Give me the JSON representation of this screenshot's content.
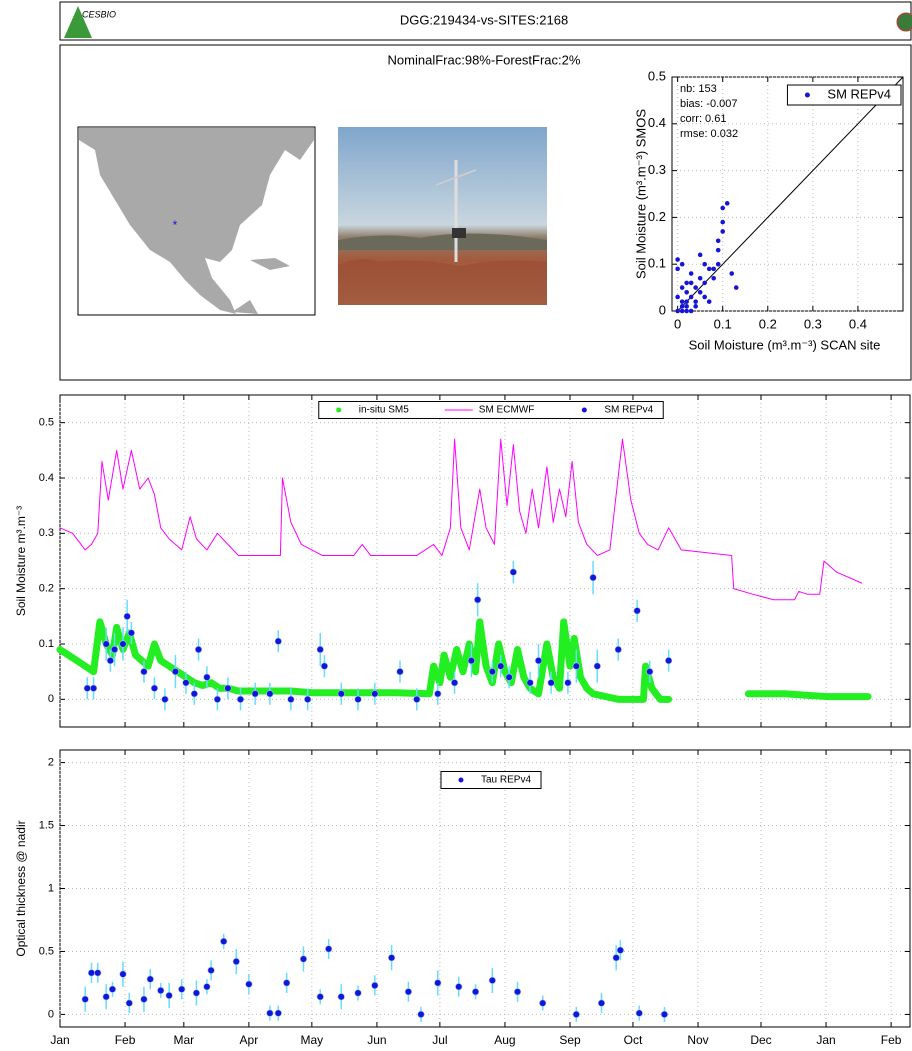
{
  "header": {
    "title": "DGG:219434-vs-SITES:2168",
    "logo_text": "CESBIO",
    "panel_title": "NominalFrac:98%-ForestFrac:2%"
  },
  "chart_data": [
    {
      "type": "scatter",
      "xlabel": "Soil Moisture (m³.m⁻³) SCAN site",
      "ylabel": "Soil Moisture (m³.m⁻³) SMOS",
      "annotations": [
        "nb:  153",
        "bias: -0.007",
        "corr:  0.61",
        "rmse: 0.032"
      ],
      "xlim": [
        -0.0125,
        0.5
      ],
      "ylim": [
        0,
        0.5
      ],
      "xticks": [
        0,
        0.1,
        0.2,
        0.3,
        0.4
      ],
      "yticks": [
        0,
        0.1,
        0.2,
        0.3,
        0.4,
        0.5
      ],
      "grid": true,
      "legend": "upper right",
      "identity_line": true,
      "series": [
        {
          "name": "SM REPv4",
          "color": "#1515d8",
          "style": "dots",
          "x": [
            0.0,
            0.01,
            0.02,
            0.01,
            0.03,
            0.0,
            0.02,
            0.04,
            0.05,
            0.01,
            0.03,
            0.06,
            0.02,
            0.07,
            0.08,
            0.05,
            0.09,
            0.1,
            0.11,
            0.1,
            0.09,
            0.02,
            0.0,
            0.01,
            0.04,
            0.06,
            0.08,
            0.12,
            0.13,
            0.0,
            0.02,
            0.03,
            0.05,
            0.07,
            0.01,
            0.09,
            0.1,
            0.06,
            0.03,
            0.04
          ],
          "values": [
            0.0,
            0.02,
            0.01,
            0.05,
            0.03,
            0.09,
            0.06,
            0.02,
            0.04,
            0.1,
            0.08,
            0.06,
            0.0,
            0.09,
            0.07,
            0.12,
            0.15,
            0.22,
            0.23,
            0.19,
            0.1,
            0.04,
            0.03,
            0.0,
            0.05,
            0.03,
            0.09,
            0.08,
            0.05,
            0.11,
            0.02,
            0.0,
            0.07,
            0.02,
            0.01,
            0.13,
            0.17,
            0.1,
            0.06,
            0.01
          ]
        }
      ]
    },
    {
      "type": "timeseries",
      "ylabel": "Soil Moisture m³.m⁻³",
      "xlim": [
        0,
        405
      ],
      "ylim": [
        -0.05,
        0.55
      ],
      "xticks": [
        0,
        31,
        59,
        90,
        120,
        151,
        181,
        212,
        243,
        273,
        304,
        334,
        365,
        396
      ],
      "xtick_labels": false,
      "yticks": [
        0,
        0.1,
        0.2,
        0.3,
        0.4,
        0.5
      ],
      "grid": true,
      "legend": "upper center",
      "series": [
        {
          "name": "in-situ SM5",
          "color": "#22ee22",
          "style": "band",
          "x": [
            0,
            4,
            8,
            12,
            16,
            19,
            22,
            25,
            27,
            30,
            33,
            36,
            39,
            42,
            45,
            48,
            52,
            56,
            60,
            64,
            68,
            72,
            76,
            80,
            85,
            90,
            100,
            110,
            120,
            140,
            160,
            176,
            178,
            181,
            183,
            186,
            189,
            192,
            195,
            198,
            200,
            203,
            206,
            209,
            212,
            215,
            218,
            221,
            224,
            228,
            232,
            235,
            238,
            240,
            243,
            245,
            248,
            251,
            254,
            266,
            278,
            279,
            282,
            286,
            290,
            310,
            328,
            345,
            365,
            385
          ],
          "values": [
            0.09,
            0.08,
            0.07,
            0.06,
            0.05,
            0.14,
            0.1,
            0.08,
            0.13,
            0.09,
            0.12,
            0.08,
            0.07,
            0.06,
            0.1,
            0.07,
            0.06,
            0.05,
            0.04,
            0.03,
            0.025,
            0.03,
            0.02,
            0.02,
            0.015,
            0.015,
            0.015,
            0.015,
            0.012,
            0.012,
            0.012,
            0.01,
            0.06,
            0.03,
            0.08,
            0.04,
            0.09,
            0.05,
            0.1,
            0.05,
            0.14,
            0.06,
            0.03,
            0.1,
            0.05,
            0.03,
            0.09,
            0.04,
            0.02,
            0.01,
            0.1,
            0.04,
            0.02,
            0.14,
            0.06,
            0.11,
            0.04,
            0.02,
            0.01,
            0,
            0,
            0.06,
            0.02,
            0,
            0,
            null,
            0.01,
            0.01,
            0.005,
            0.005
          ]
        },
        {
          "name": "SM ECMWF",
          "color": "#ff00ff",
          "style": "line",
          "x": [
            0,
            6,
            12,
            15,
            18,
            20,
            23,
            27,
            30,
            34,
            38,
            42,
            45,
            48,
            52,
            58,
            62,
            65,
            70,
            75,
            80,
            85,
            105,
            106,
            110,
            115,
            120,
            125,
            140,
            144,
            148,
            170,
            178,
            182,
            186,
            188,
            191,
            195,
            200,
            203,
            207,
            210,
            213,
            216,
            219,
            222,
            225,
            228,
            232,
            235,
            238,
            241,
            244,
            247,
            251,
            256,
            262,
            268,
            272,
            276,
            280,
            285,
            290,
            296,
            320,
            321,
            330,
            340,
            350,
            352,
            356,
            362,
            364,
            370,
            382
          ],
          "values": [
            0.31,
            0.3,
            0.27,
            0.28,
            0.3,
            0.43,
            0.36,
            0.45,
            0.38,
            0.45,
            0.38,
            0.4,
            0.37,
            0.31,
            0.29,
            0.27,
            0.33,
            0.29,
            0.27,
            0.3,
            0.28,
            0.26,
            0.26,
            0.4,
            0.32,
            0.28,
            0.27,
            0.26,
            0.26,
            0.28,
            0.26,
            0.26,
            0.28,
            0.26,
            0.31,
            0.47,
            0.31,
            0.27,
            0.38,
            0.31,
            0.28,
            0.47,
            0.35,
            0.46,
            0.34,
            0.3,
            0.38,
            0.31,
            0.42,
            0.32,
            0.38,
            0.33,
            0.43,
            0.32,
            0.28,
            0.26,
            0.27,
            0.47,
            0.36,
            0.3,
            0.28,
            0.27,
            0.31,
            0.27,
            0.26,
            0.2,
            0.19,
            0.18,
            0.18,
            0.195,
            0.19,
            0.19,
            0.25,
            0.23,
            0.21
          ]
        },
        {
          "name": "SM REPv4",
          "color": "#1515d8",
          "error_color": "#66ddff",
          "style": "errorbar",
          "x": [
            13,
            16,
            22,
            24,
            26,
            30,
            32,
            34,
            40,
            45,
            50,
            55,
            60,
            64,
            66,
            70,
            75,
            80,
            86,
            93,
            100,
            104,
            110,
            118,
            124,
            126,
            134,
            142,
            150,
            162,
            170,
            180,
            188,
            196,
            199,
            206,
            210,
            214,
            216,
            224,
            228,
            234,
            242,
            246,
            254,
            256,
            266,
            275,
            281,
            290
          ],
          "values": [
            0.02,
            0.02,
            0.1,
            0.07,
            0.09,
            0.1,
            0.15,
            0.12,
            0.05,
            0.02,
            0.0,
            0.05,
            0.03,
            0.01,
            0.09,
            0.04,
            0.0,
            0.02,
            0.0,
            0.01,
            0.01,
            0.105,
            0.0,
            0.0,
            0.09,
            0.06,
            0.01,
            0.0,
            0.01,
            0.05,
            0.0,
            0.01,
            0.03,
            0.07,
            0.18,
            0.05,
            0.06,
            0.04,
            0.23,
            0.03,
            0.07,
            0.03,
            0.03,
            0.06,
            0.22,
            0.06,
            0.09,
            0.16,
            0.05,
            0.07
          ],
          "errors": [
            0.02,
            0.02,
            0.03,
            0.02,
            0.03,
            0.03,
            0.03,
            0.02,
            0.02,
            0.02,
            0.02,
            0.03,
            0.02,
            0.02,
            0.02,
            0.02,
            0.02,
            0.02,
            0.02,
            0.02,
            0.02,
            0.02,
            0.02,
            0.02,
            0.03,
            0.02,
            0.02,
            0.02,
            0.02,
            0.02,
            0.02,
            0.02,
            0.02,
            0.03,
            0.03,
            0.02,
            0.02,
            0.02,
            0.02,
            0.02,
            0.03,
            0.02,
            0.02,
            0.03,
            0.03,
            0.03,
            0.02,
            0.02,
            0.02,
            0.02
          ]
        }
      ]
    },
    {
      "type": "timeseries",
      "ylabel": "Optical thickness @ nadir",
      "xlim": [
        0,
        405
      ],
      "ylim": [
        -0.1,
        2.1
      ],
      "xticks": [
        {
          "value": 0,
          "label": "Jan"
        },
        {
          "value": 31,
          "label": "Feb"
        },
        {
          "value": 59,
          "label": "Mar"
        },
        {
          "value": 90,
          "label": "Apr"
        },
        {
          "value": 120,
          "label": "May"
        },
        {
          "value": 151,
          "label": "Jun"
        },
        {
          "value": 181,
          "label": "Jul"
        },
        {
          "value": 212,
          "label": "Aug"
        },
        {
          "value": 243,
          "label": "Sep"
        },
        {
          "value": 273,
          "label": "Oct"
        },
        {
          "value": 304,
          "label": "Nov"
        },
        {
          "value": 334,
          "label": "Dec"
        },
        {
          "value": 365,
          "label": "Jan"
        },
        {
          "value": 396,
          "label": "Feb"
        }
      ],
      "yticks": [
        0,
        0.5,
        1,
        1.5,
        2
      ],
      "grid": true,
      "legend": "upper center",
      "series": [
        {
          "name": "Tau REPv4",
          "color": "#1515d8",
          "error_color": "#66ddff",
          "style": "errorbar",
          "x": [
            12,
            15,
            18,
            22,
            25,
            30,
            33,
            40,
            43,
            48,
            52,
            58,
            65,
            70,
            72,
            78,
            84,
            90,
            100,
            104,
            108,
            116,
            124,
            128,
            134,
            142,
            150,
            158,
            166,
            172,
            180,
            190,
            198,
            206,
            218,
            230,
            246,
            258,
            265,
            267,
            276,
            288
          ],
          "values": [
            0.12,
            0.33,
            0.33,
            0.14,
            0.2,
            0.32,
            0.09,
            0.12,
            0.28,
            0.19,
            0.15,
            0.2,
            0.17,
            0.22,
            0.35,
            0.58,
            0.42,
            0.24,
            0.01,
            0.01,
            0.25,
            0.44,
            0.14,
            0.52,
            0.14,
            0.17,
            0.23,
            0.45,
            0.18,
            0.0,
            0.25,
            0.22,
            0.18,
            0.27,
            0.18,
            0.09,
            0.0,
            0.09,
            0.45,
            0.51,
            0.01,
            0.0
          ],
          "errors": [
            0.1,
            0.08,
            0.08,
            0.1,
            0.06,
            0.1,
            0.08,
            0.1,
            0.08,
            0.06,
            0.1,
            0.08,
            0.1,
            0.06,
            0.08,
            0.06,
            0.1,
            0.08,
            0.06,
            0.06,
            0.08,
            0.1,
            0.06,
            0.08,
            0.1,
            0.06,
            0.08,
            0.1,
            0.08,
            0.06,
            0.1,
            0.08,
            0.06,
            0.1,
            0.08,
            0.06,
            0.06,
            0.08,
            0.1,
            0.08,
            0.06,
            0.06
          ]
        }
      ]
    }
  ]
}
